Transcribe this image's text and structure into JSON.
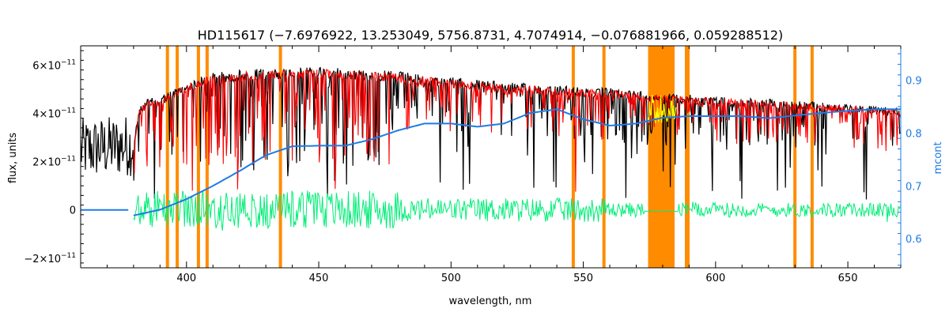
{
  "chart_data": {
    "type": "line",
    "title": "HD115617    (−7.6976922, 13.253049, 5756.8731, 4.7074914, −0.076881966, 0.059288512)",
    "xlabel": "wavelength, nm",
    "ylabel_left": "flux, units",
    "ylabel_right": "mcont",
    "xlim": [
      360,
      670
    ],
    "ylim_left": [
      -2.4e-11,
      6.8e-11
    ],
    "ylim_right": [
      0.545,
      0.965
    ],
    "x_ticks": [
      {
        "value": 400,
        "label": "400"
      },
      {
        "value": 450,
        "label": "450"
      },
      {
        "value": 500,
        "label": "500"
      },
      {
        "value": 550,
        "label": "550"
      },
      {
        "value": 600,
        "label": "600"
      },
      {
        "value": 650,
        "label": "650"
      }
    ],
    "y_ticks_left": [
      {
        "value": -2e-11,
        "base": "−2×10",
        "exp": "−11"
      },
      {
        "value": 0,
        "base": "0",
        "exp": ""
      },
      {
        "value": 2e-11,
        "base": "2×10",
        "exp": "−11"
      },
      {
        "value": 4e-11,
        "base": "4×10",
        "exp": "−11"
      },
      {
        "value": 6e-11,
        "base": "6×10",
        "exp": "−11"
      }
    ],
    "y_ticks_right": [
      {
        "value": 0.6,
        "label": "0.6"
      },
      {
        "value": 0.7,
        "label": "0.7"
      },
      {
        "value": 0.8,
        "label": "0.8"
      },
      {
        "value": 0.9,
        "label": "0.9"
      }
    ],
    "series": [
      {
        "kind": "continuum-left-axis",
        "color": "#1e7be6",
        "x": [
          360,
          378
        ],
        "y": [
          0.0,
          0.0
        ]
      },
      {
        "kind": "continuum-right-axis",
        "color": "#1e7be6",
        "x": [
          380,
          390,
          400,
          410,
          420,
          430,
          440,
          450,
          460,
          470,
          480,
          490,
          500,
          510,
          520,
          530,
          540,
          550,
          560,
          570,
          580,
          590,
          600,
          610,
          620,
          630,
          640,
          650,
          660,
          670
        ],
        "y": [
          0.644,
          0.655,
          0.675,
          0.7,
          0.728,
          0.758,
          0.775,
          0.776,
          0.776,
          0.788,
          0.805,
          0.818,
          0.818,
          0.812,
          0.818,
          0.838,
          0.845,
          0.826,
          0.814,
          0.818,
          0.829,
          0.832,
          0.832,
          0.832,
          0.828,
          0.833,
          0.838,
          0.842,
          0.845,
          0.845
        ]
      },
      {
        "kind": "observed-flux",
        "color": "#000000",
        "x": [
          360,
          380,
          382,
          385,
          390,
          395,
          400,
          410,
          420,
          430,
          440,
          450,
          460,
          470,
          480,
          490,
          500,
          520,
          540,
          560,
          580,
          600,
          620,
          640,
          660,
          670
        ],
        "y": [
          2.5e-11,
          2.7e-11,
          4.2e-11,
          4.6e-11,
          4.7e-11,
          5e-11,
          5.3e-11,
          5.7e-11,
          5.8e-11,
          5.85e-11,
          5.9e-11,
          5.95e-11,
          5.85e-11,
          5.8e-11,
          5.75e-11,
          5.6e-11,
          5.5e-11,
          5.3e-11,
          5.15e-11,
          5.05e-11,
          4.85e-11,
          4.7e-11,
          4.6e-11,
          4.45e-11,
          4.3e-11,
          4.2e-11
        ]
      },
      {
        "kind": "model-flux",
        "color": "#ff0000",
        "x": [
          380,
          670
        ],
        "y": [
          5.6e-11,
          4.2e-11
        ]
      },
      {
        "kind": "residuals",
        "color": "#00ee77",
        "x": [
          380,
          670
        ],
        "y": [
          0.0,
          0.0
        ]
      }
    ],
    "masked_lines_nm": [
      392.8,
      396.5,
      404.5,
      407.8,
      435.5,
      546.2,
      557.8,
      589.0,
      589.6,
      630.0,
      636.5
    ],
    "masked_band_nm": [
      574.5,
      584.5
    ],
    "colors": {
      "frame": "#000000",
      "right_axis": "#1e7be6",
      "mask": "#ff8c00",
      "highlight": "#ffff00"
    }
  }
}
